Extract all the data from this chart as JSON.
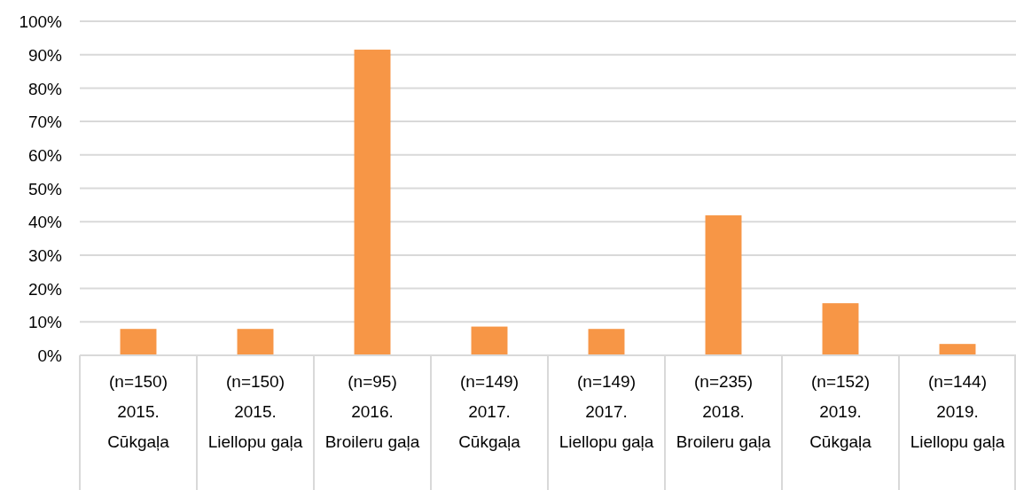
{
  "chart_data": {
    "type": "bar",
    "categories": [
      "(n=150)\n2015.\nCūkgaļa",
      "(n=150)\n2015.\nLiellopu gaļa",
      "(n=95)\n2016.\nBroileru gaļa",
      "(n=149)\n2017.\nCūkgaļa",
      "(n=149)\n2017.\nLiellopu gaļa",
      "(n=235)\n2018.\nBroileru gaļa",
      "(n=152)\n2019.\nCūkgaļa",
      "(n=144)\n2019.\nLiellopu gaļa"
    ],
    "values": [
      7.9,
      7.9,
      91.5,
      8.6,
      7.9,
      41.9,
      15.6,
      3.4
    ],
    "color": "#f79646",
    "ylim": [
      0,
      100
    ],
    "yticks": [
      {
        "value": 0,
        "label": "0%"
      },
      {
        "value": 10,
        "label": "10%"
      },
      {
        "value": 20,
        "label": "20%"
      },
      {
        "value": 30,
        "label": "30%"
      },
      {
        "value": 40,
        "label": "40%"
      },
      {
        "value": 50,
        "label": "50%"
      },
      {
        "value": 60,
        "label": "60%"
      },
      {
        "value": 70,
        "label": "70%"
      },
      {
        "value": 80,
        "label": "80%"
      },
      {
        "value": 90,
        "label": "90%"
      },
      {
        "value": 100,
        "label": "100%"
      }
    ],
    "grid": "y"
  }
}
